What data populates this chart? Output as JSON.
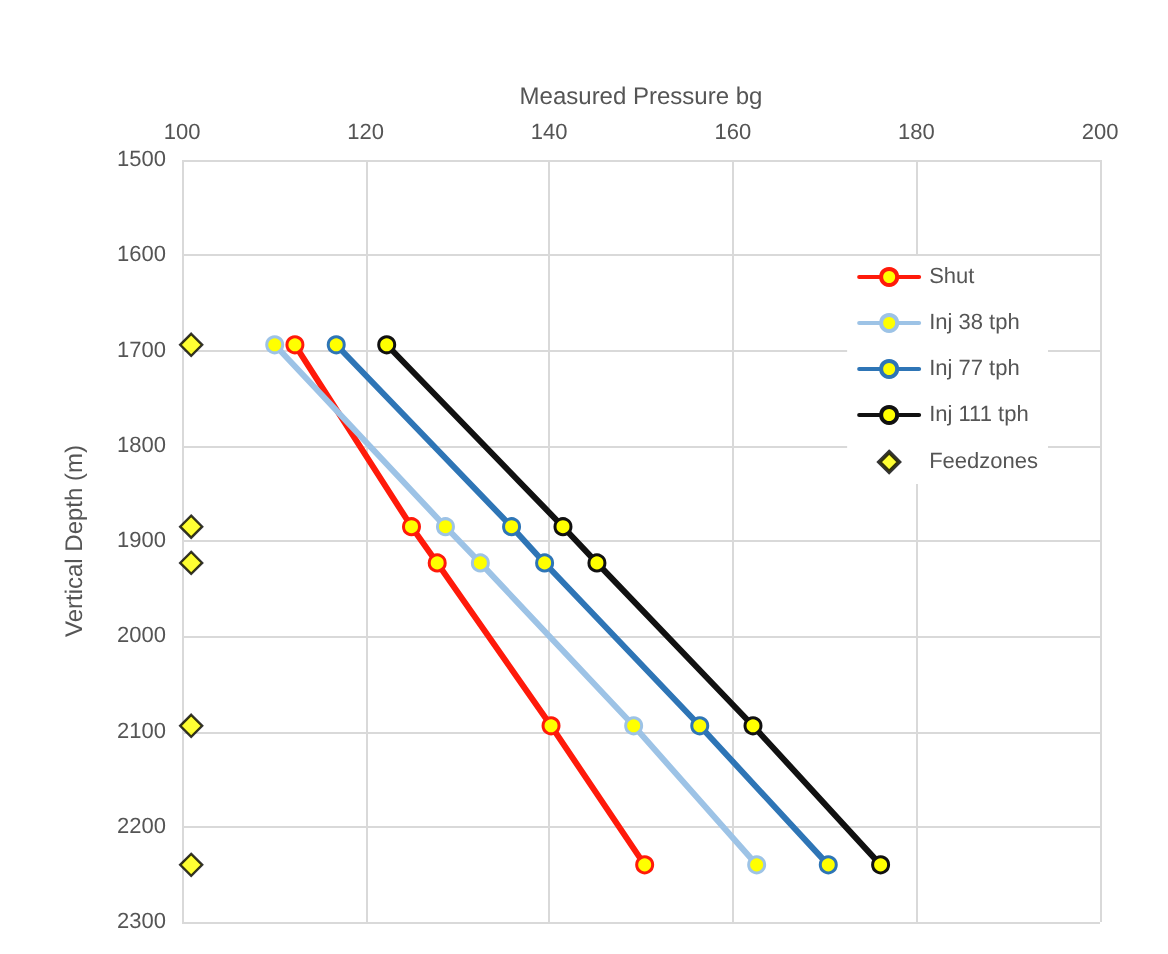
{
  "chart_data": {
    "type": "line",
    "xlabel": "Measured Pressure bg",
    "ylabel": "Vertical Depth (m)",
    "xlim": [
      100,
      200
    ],
    "xticks": [
      100,
      120,
      140,
      160,
      180,
      200
    ],
    "ylim": [
      2300,
      1500
    ],
    "yticks": [
      1500,
      1600,
      1700,
      1800,
      1900,
      2000,
      2100,
      2200,
      2300
    ],
    "grid": true,
    "legend": "top right",
    "marker": "circle",
    "line_style": "solid",
    "series": [
      {
        "name": "Shut",
        "color": "#ff1a0a",
        "x": [
          112.3,
          125.0,
          127.8,
          140.2,
          150.4
        ],
        "values": [
          1694,
          1885,
          1923,
          2094,
          2240
        ]
      },
      {
        "name": "Inj 38 tph",
        "color": "#9dc3e6",
        "x": [
          110.1,
          128.7,
          132.5,
          149.2,
          162.6
        ],
        "values": [
          1694,
          1885,
          1923,
          2094,
          2240
        ]
      },
      {
        "name": "Inj 77 tph",
        "color": "#2e75b6",
        "x": [
          116.8,
          135.9,
          139.5,
          156.4,
          170.4
        ],
        "values": [
          1694,
          1885,
          1923,
          2094,
          2240
        ]
      },
      {
        "name": "Inj 111 tph",
        "color": "#111111",
        "x": [
          122.3,
          141.5,
          145.2,
          162.2,
          176.1
        ],
        "values": [
          1694,
          1885,
          1923,
          2094,
          2240
        ]
      },
      {
        "name": "Feedzones",
        "type": "scatter",
        "marker": "diamond",
        "color": "#ffff00",
        "x": [
          101,
          101,
          101,
          101,
          101
        ],
        "values": [
          1694,
          1885,
          1923,
          2094,
          2240
        ]
      }
    ]
  }
}
